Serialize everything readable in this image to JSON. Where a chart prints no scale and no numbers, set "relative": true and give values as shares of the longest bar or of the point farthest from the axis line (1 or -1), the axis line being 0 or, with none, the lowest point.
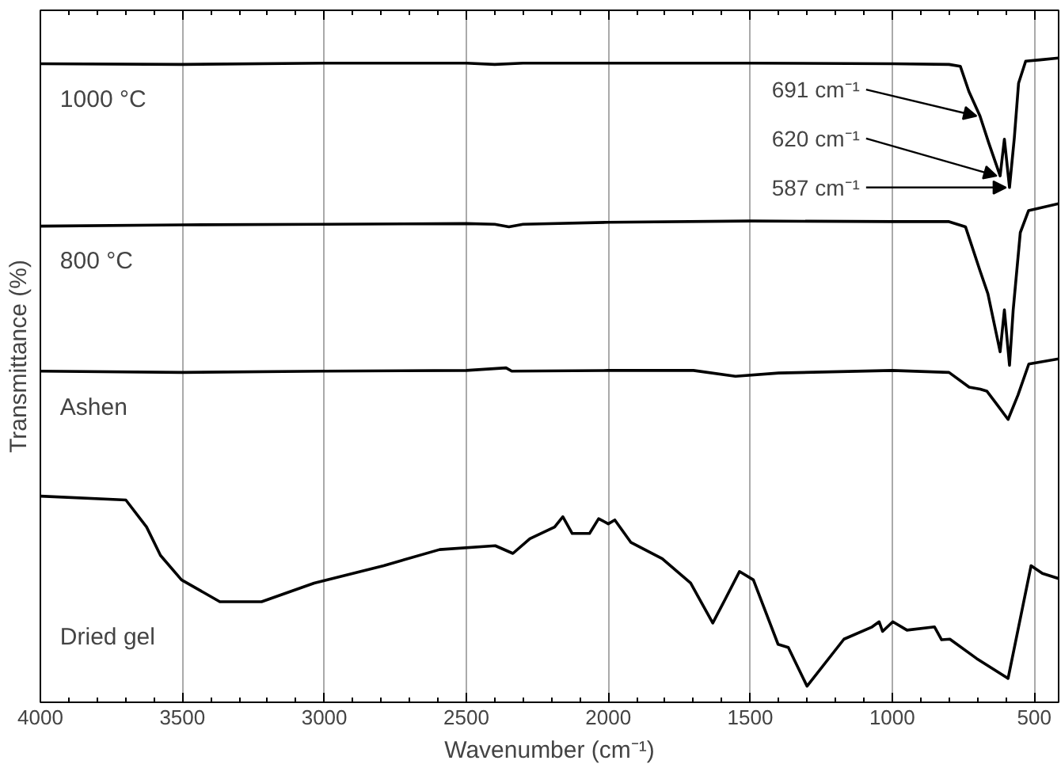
{
  "chart_data": {
    "type": "line",
    "relative": true,
    "xlabel": "Wavenumber (cm⁻¹)",
    "ylabel": "Transmittance (%)",
    "xlim": [
      4000,
      414
    ],
    "xticks": [
      4000,
      3500,
      3000,
      2500,
      2000,
      1500,
      1000,
      500
    ],
    "grid": "x",
    "legend": false,
    "marker": "none",
    "line_style": "solid",
    "series": [
      {
        "name": "1000 °C",
        "color": "#000000",
        "x": [
          4000,
          3500,
          3000,
          2500,
          2400,
          2300,
          2000,
          1500,
          1000,
          800,
          760,
          730,
          691,
          660,
          620,
          605,
          587,
          570,
          555,
          530,
          480,
          414
        ],
        "values": [
          0.991,
          0.99,
          0.992,
          0.992,
          0.99,
          0.992,
          0.992,
          0.992,
          0.991,
          0.99,
          0.987,
          0.948,
          0.91,
          0.868,
          0.817,
          0.874,
          0.799,
          0.876,
          0.961,
          0.995,
          0.997,
          1.0
        ]
      },
      {
        "name": "800 °C",
        "color": "#000000",
        "x": [
          4000,
          3500,
          3000,
          2500,
          2400,
          2350,
          2300,
          2000,
          1500,
          1000,
          800,
          742,
          691,
          663,
          620,
          605,
          587,
          574,
          549,
          520,
          414
        ],
        "values": [
          0.739,
          0.741,
          0.742,
          0.743,
          0.742,
          0.738,
          0.742,
          0.745,
          0.747,
          0.746,
          0.746,
          0.738,
          0.67,
          0.634,
          0.544,
          0.609,
          0.523,
          0.609,
          0.729,
          0.763,
          0.774
        ]
      },
      {
        "name": "Ashen",
        "color": "#000000",
        "x": [
          4000,
          3500,
          3000,
          2500,
          2360,
          2340,
          2000,
          1700,
          1552,
          1400,
          1000,
          800,
          729,
          690,
          667,
          629,
          592,
          557,
          519,
          414
        ],
        "values": [
          0.514,
          0.512,
          0.514,
          0.515,
          0.519,
          0.514,
          0.515,
          0.515,
          0.506,
          0.511,
          0.515,
          0.512,
          0.489,
          0.486,
          0.483,
          0.461,
          0.439,
          0.477,
          0.525,
          0.533
        ]
      },
      {
        "name": "Dried gel",
        "color": "#000000",
        "x": [
          4000,
          3699,
          3626,
          3577,
          3503,
          3368,
          3221,
          3036,
          2791,
          2594,
          2398,
          2336,
          2276,
          2189,
          2160,
          2127,
          2066,
          2034,
          2000,
          1977,
          1920,
          1810,
          1710,
          1632,
          1587,
          1538,
          1489,
          1402,
          1366,
          1300,
          1170,
          1071,
          1046,
          1034,
          998,
          948,
          851,
          826,
          797,
          703,
          592,
          511,
          471,
          414
        ],
        "values": [
          0.32,
          0.314,
          0.272,
          0.228,
          0.19,
          0.156,
          0.156,
          0.185,
          0.212,
          0.237,
          0.243,
          0.231,
          0.254,
          0.272,
          0.288,
          0.262,
          0.262,
          0.285,
          0.277,
          0.283,
          0.248,
          0.223,
          0.185,
          0.123,
          0.161,
          0.203,
          0.19,
          0.09,
          0.085,
          0.025,
          0.098,
          0.117,
          0.125,
          0.11,
          0.125,
          0.112,
          0.117,
          0.097,
          0.098,
          0.068,
          0.037,
          0.212,
          0.2,
          0.192
        ]
      }
    ],
    "annotations": [
      {
        "text": "691 cm⁻¹",
        "x": 691,
        "y": 0.91
      },
      {
        "text": "620 cm⁻¹",
        "x": 620,
        "y": 0.817
      },
      {
        "text": "587 cm⁻¹",
        "x": 587,
        "y": 0.799
      }
    ]
  }
}
